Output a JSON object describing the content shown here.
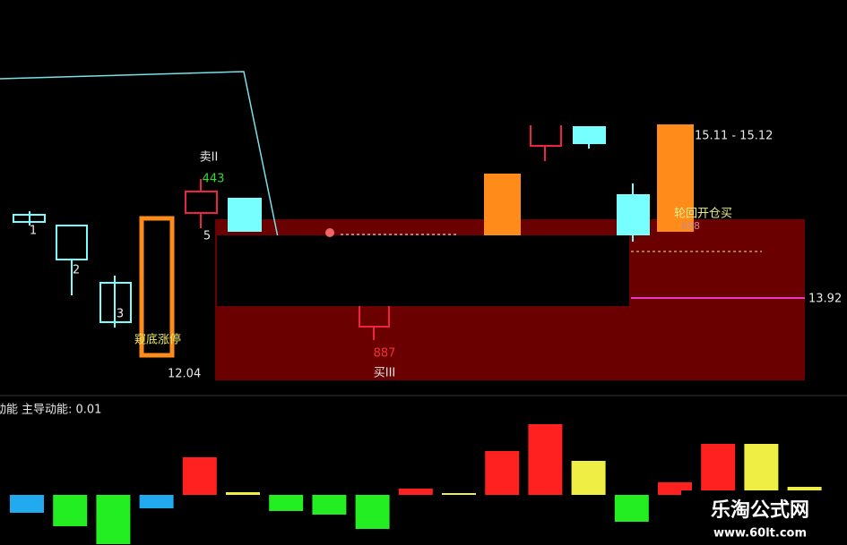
{
  "labels": {
    "sell": "卖II",
    "sell_value": "443",
    "n5": "5",
    "n1": "1",
    "n2": "2",
    "n3": "3",
    "signal": "窥底涨停",
    "low_price": "12.04",
    "buy_value": "887",
    "buy": "买III",
    "range": "15.11 - 15.12",
    "cycle_buy": "轮回开仓买",
    "cycle_value": "888",
    "level": "13.92"
  },
  "indicator": {
    "name": "动能",
    "title": "主导动能: 0.01",
    "values": [
      -20,
      -35,
      -55,
      -15,
      42,
      3,
      -18,
      -22,
      -38,
      7,
      2,
      49,
      79,
      38,
      -30,
      14,
      57,
      57,
      9
    ],
    "colors": [
      "#22aaee",
      "#22ee22",
      "#22ee22",
      "#22aaee",
      "#ff2020",
      "#eeee44",
      "#22ee22",
      "#22ee22",
      "#22ee22",
      "#ff2020",
      "#eeee44",
      "#ff2020",
      "#ff2020",
      "#eeee44",
      "#22ee22",
      "#ff2020",
      "#ff2020",
      "#eeee44",
      "#eeee44"
    ]
  },
  "watermark": {
    "name": "乐淘公式网",
    "url": "www.60lt.com"
  }
}
